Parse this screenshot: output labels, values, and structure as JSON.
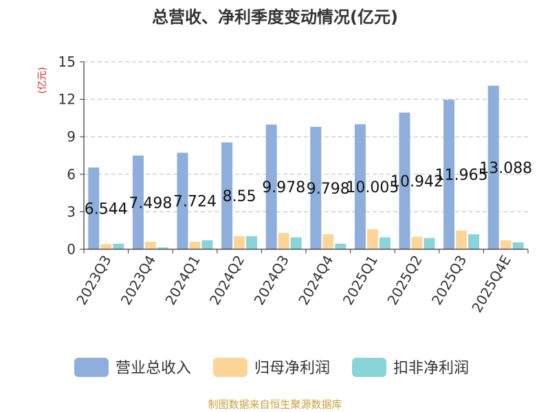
{
  "chart_data": {
    "type": "bar",
    "title": "总营收、净利季度变动情况(亿元)",
    "ylabel": "(亿元)",
    "categories": [
      "2023Q3",
      "2023Q4",
      "2024Q1",
      "2024Q2",
      "2024Q3",
      "2024Q4",
      "2025Q1",
      "2025Q2",
      "2025Q3",
      "2025Q4E"
    ],
    "ylim": [
      0,
      15
    ],
    "yticks": [
      0,
      3,
      6,
      9,
      12,
      15
    ],
    "grid": true,
    "legend_position": "bottom",
    "series": [
      {
        "name": "营业总收入",
        "color": "#8eaedb",
        "values": [
          6.544,
          7.498,
          7.724,
          8.55,
          9.978,
          9.798,
          10.005,
          10.942,
          11.965,
          13.088
        ],
        "labels": [
          "6.544",
          "7.498",
          "7.724",
          "8.55",
          "9.978",
          "9.798",
          "10.005",
          "10.942",
          "11.965",
          "13.088"
        ]
      },
      {
        "name": "归母净利润",
        "color": "#fdd598",
        "values": [
          0.4,
          0.6,
          0.6,
          1.05,
          1.3,
          1.2,
          1.6,
          1.0,
          1.5,
          0.7
        ]
      },
      {
        "name": "扣非净利润",
        "color": "#88d4d8",
        "values": [
          0.45,
          0.15,
          0.72,
          1.05,
          0.95,
          0.45,
          0.95,
          0.9,
          1.2,
          0.55
        ]
      }
    ]
  },
  "footer": "制图数据来自恒生聚源数据库"
}
